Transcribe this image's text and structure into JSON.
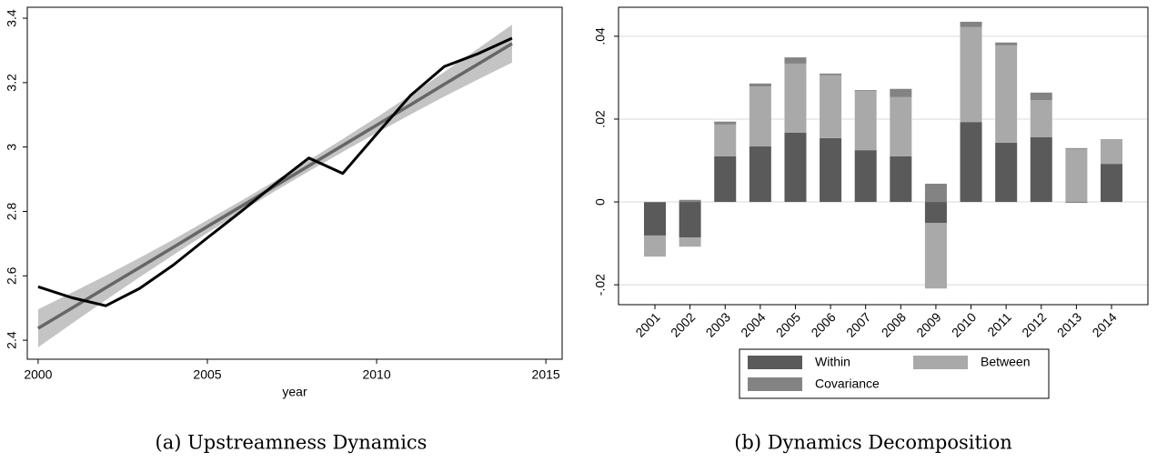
{
  "chart_data": [
    {
      "type": "line",
      "caption": "(a) Upstreamness Dynamics",
      "xlabel": "year",
      "x": [
        2000,
        2001,
        2002,
        2003,
        2004,
        2005,
        2006,
        2007,
        2008,
        2009,
        2010,
        2011,
        2012,
        2013,
        2014
      ],
      "series": [
        {
          "color": "#000000",
          "values": [
            2.566,
            2.532,
            2.507,
            2.561,
            2.634,
            2.718,
            2.8,
            2.885,
            2.966,
            2.918,
            3.04,
            3.16,
            3.25,
            3.29,
            3.338
          ]
        }
      ],
      "fit": {
        "color": "#666666",
        "values": [
          2.437,
          2.5,
          2.563,
          2.626,
          2.689,
          2.753,
          2.816,
          2.879,
          2.942,
          3.005,
          3.068,
          3.131,
          3.195,
          3.258,
          3.321
        ]
      },
      "band": {
        "color": "#c4c4c4",
        "lower": [
          2.378,
          2.452,
          2.525,
          2.596,
          2.665,
          2.733,
          2.799,
          2.863,
          2.925,
          2.985,
          3.044,
          3.101,
          3.157,
          3.21,
          3.262
        ],
        "upper": [
          2.496,
          2.548,
          2.601,
          2.656,
          2.713,
          2.773,
          2.833,
          2.895,
          2.959,
          3.025,
          3.092,
          3.161,
          3.233,
          3.306,
          3.38
        ]
      },
      "xlim": [
        1999.68,
        2015.48
      ],
      "xticks": [
        2000,
        2005,
        2010,
        2015
      ],
      "ylim": [
        2.341,
        3.434
      ],
      "yticks": [
        2.4,
        2.6,
        2.8,
        3,
        3.2,
        3.4
      ],
      "grid": false
    },
    {
      "type": "bar",
      "stacked": true,
      "caption": "(b) Dynamics Decomposition",
      "categories": [
        "2001",
        "2002",
        "2003",
        "2004",
        "2005",
        "2006",
        "2007",
        "2008",
        "2009",
        "2010",
        "2011",
        "2012",
        "2013",
        "2014"
      ],
      "series": [
        {
          "name": "Within",
          "color": "#5a5a5a",
          "values": [
            -0.0081,
            -0.0086,
            0.011,
            0.0134,
            0.0167,
            0.0154,
            0.0125,
            0.011,
            -0.0051,
            0.0193,
            0.0143,
            0.0156,
            -0.0001,
            0.0092
          ]
        },
        {
          "name": "Between",
          "color": "#a9a9a9",
          "values": [
            -0.0051,
            -0.0022,
            0.0077,
            0.0145,
            0.0167,
            0.0152,
            0.0143,
            0.0143,
            -0.0158,
            0.0229,
            0.0235,
            0.009,
            0.0129,
            0.0057
          ]
        },
        {
          "name": "Covariance",
          "color": "#838383",
          "values": [
            0,
            0.0005,
            0.0007,
            0.0007,
            0.0015,
            0.0004,
            0.0002,
            0.002,
            0.0044,
            0.0013,
            0.0007,
            0.0018,
            0.0001,
            0.0002
          ]
        }
      ],
      "ylim": [
        -0.0248,
        0.047
      ],
      "yticks": [
        {
          "value": -0.02,
          "label": "-.02"
        },
        0,
        {
          "value": 0.02,
          "label": ".02"
        },
        {
          "value": 0.04,
          "label": ".04"
        }
      ],
      "grid": true,
      "legend": "bottom"
    }
  ]
}
